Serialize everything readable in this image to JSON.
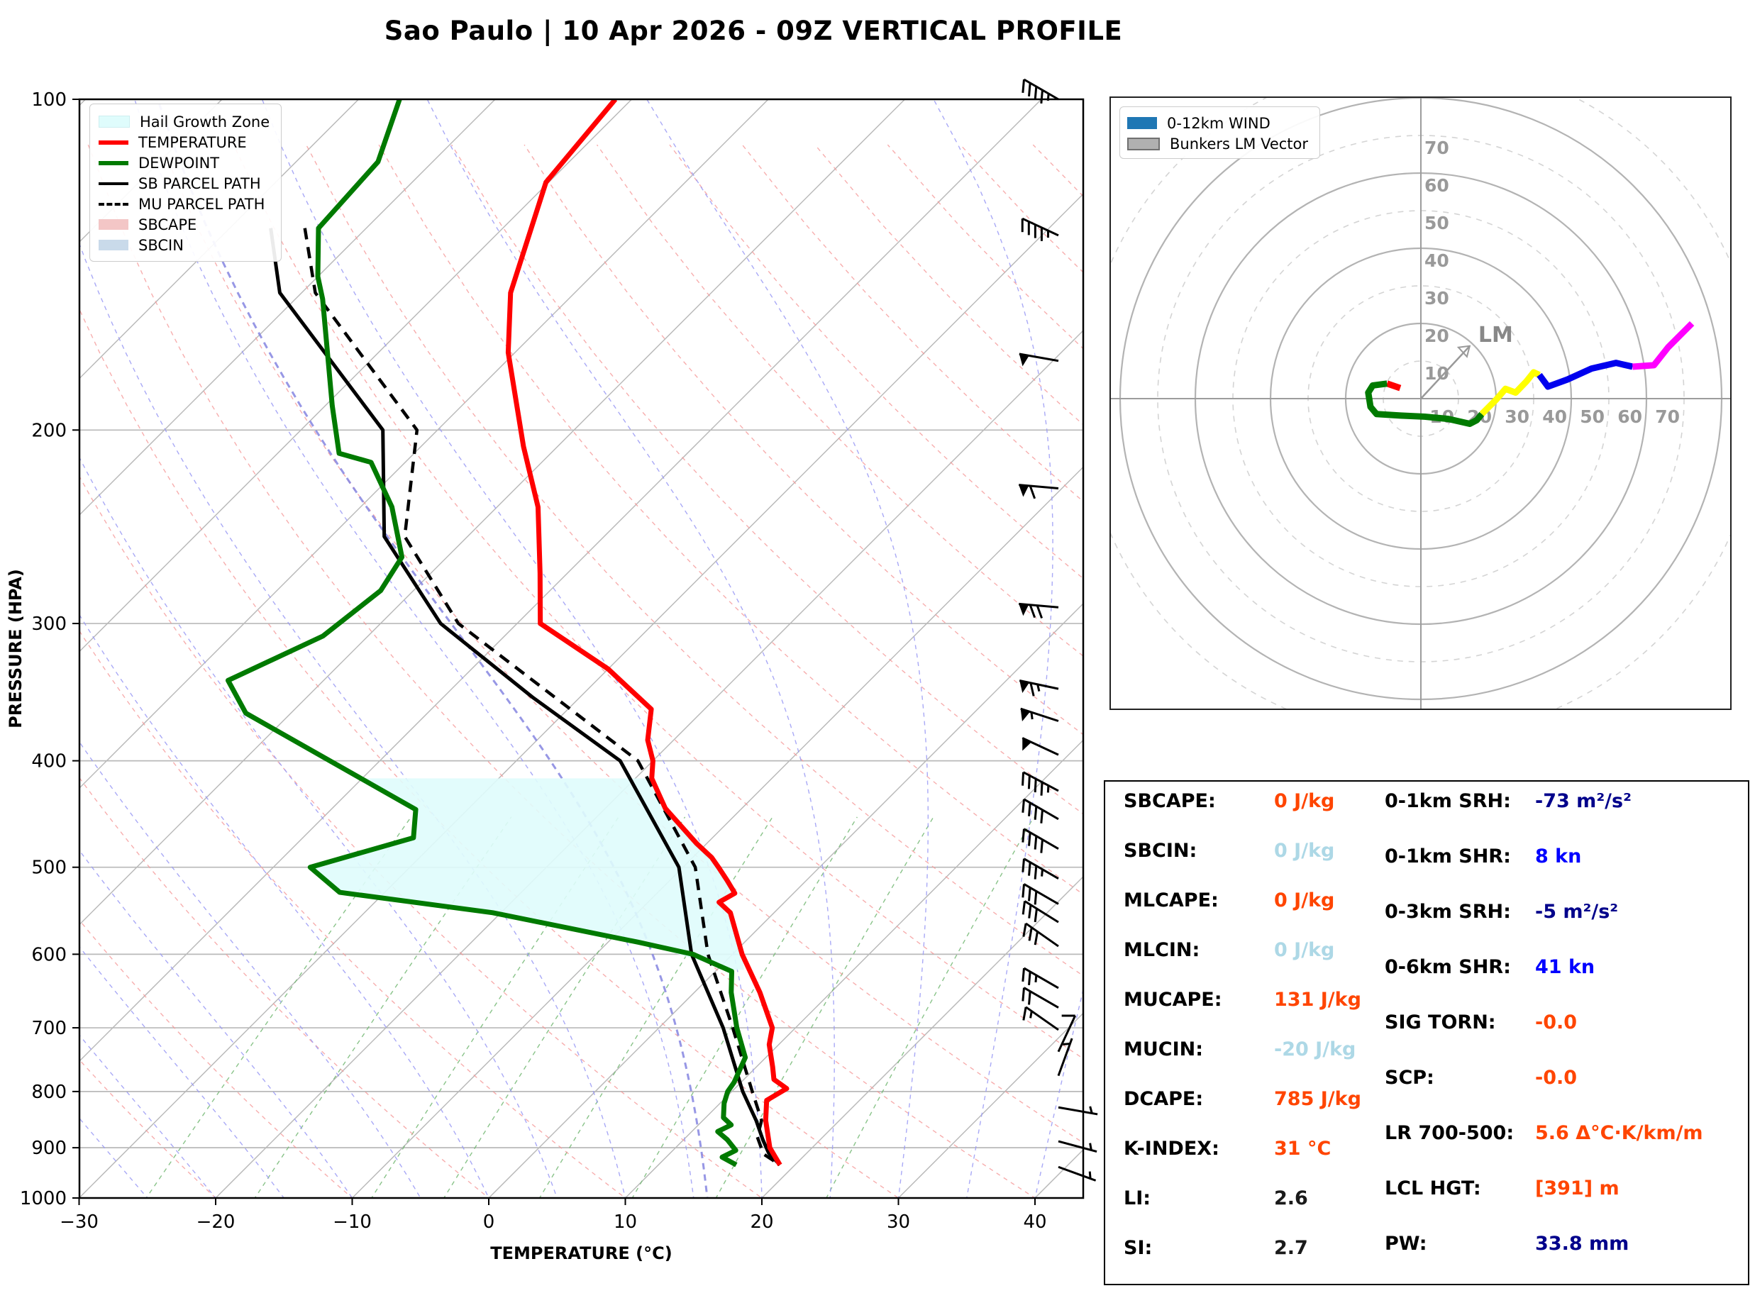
{
  "meta": {
    "title": "Sao Paulo | 10 Apr 2026 - 09Z VERTICAL PROFILE"
  },
  "skewt": {
    "xlabel": "TEMPERATURE (°C)",
    "ylabel": "PRESSURE (HPA)",
    "legend": [
      {
        "swatch": "patch-cyan",
        "label": "Hail Growth Zone"
      },
      {
        "swatch": "line-red",
        "label": "TEMPERATURE"
      },
      {
        "swatch": "line-green",
        "label": "DEWPOINT"
      },
      {
        "swatch": "line-black",
        "label": "SB PARCEL PATH"
      },
      {
        "swatch": "line-dashed",
        "label": "MU PARCEL PATH"
      },
      {
        "swatch": "patch-red",
        "label": "SBCAPE"
      },
      {
        "swatch": "patch-blue",
        "label": "SBCIN"
      }
    ]
  },
  "hodograph": {
    "legend": [
      {
        "swatch": "patch-steelblue",
        "label": "0-12km WIND"
      },
      {
        "swatch": "patch-gray",
        "label": "Bunkers LM Vector"
      }
    ],
    "lm_label": "LM"
  },
  "colors": {
    "temperature": "#FF0000",
    "dewpoint": "#007A00",
    "parcel": "#000000",
    "hail_zone": "#DFFCFC",
    "dry_adiabat": "#F59A9A",
    "moist_adiabat": "#9A9AF5",
    "mixing_ratio": "#74B874",
    "grid": "#B9B9B9",
    "hodo_ring": "#B3B3B3",
    "hodo_label": "#999999",
    "trace": [
      "#FF0000",
      "#007A00",
      "#FFFF00",
      "#0000EE",
      "#FF00FF"
    ]
  },
  "chart_data": {
    "type": "skewt-logp",
    "title": "Sao Paulo | 10 Apr 2026 - 09Z VERTICAL PROFILE",
    "pressure_ticks": [
      100,
      200,
      300,
      400,
      500,
      600,
      700,
      800,
      900,
      1000
    ],
    "temp_ticks": [
      -30,
      -20,
      -10,
      0,
      10,
      20,
      30,
      40
    ],
    "pressure_range": [
      100,
      1000
    ],
    "temp_range": [
      -30,
      40
    ],
    "series": {
      "temperature": [
        [
          100,
          -71.2
        ],
        [
          119,
          -70.2
        ],
        [
          150,
          -64.7
        ],
        [
          170,
          -60.5
        ],
        [
          207,
          -52.5
        ],
        [
          235,
          -47
        ],
        [
          270,
          -42
        ],
        [
          300,
          -38.3
        ],
        [
          330,
          -30
        ],
        [
          359,
          -23.9
        ],
        [
          383,
          -21.9
        ],
        [
          400,
          -20
        ],
        [
          415,
          -18.8
        ],
        [
          442,
          -15.6
        ],
        [
          476,
          -10.7
        ],
        [
          490,
          -8.6
        ],
        [
          500,
          -7.4
        ],
        [
          514,
          -5.8
        ],
        [
          528,
          -4.3
        ],
        [
          538,
          -4.8
        ],
        [
          550,
          -3.2
        ],
        [
          600,
          0.7
        ],
        [
          650,
          4.8
        ],
        [
          700,
          8.3
        ],
        [
          725,
          9.3
        ],
        [
          760,
          11.2
        ],
        [
          780,
          12.2
        ],
        [
          795,
          13.8
        ],
        [
          815,
          13.2
        ],
        [
          850,
          14.6
        ],
        [
          900,
          16.9
        ],
        [
          933,
          18.9
        ]
      ],
      "dewpoint": [
        [
          100,
          -87
        ],
        [
          114,
          -84
        ],
        [
          131,
          -83.5
        ],
        [
          145,
          -80
        ],
        [
          152,
          -78
        ],
        [
          190,
          -69.5
        ],
        [
          210,
          -65.5
        ],
        [
          214,
          -62.5
        ],
        [
          235,
          -57.7
        ],
        [
          261,
          -53.3
        ],
        [
          280,
          -52.4
        ],
        [
          308,
          -53.3
        ],
        [
          338,
          -57
        ],
        [
          362,
          -53.3
        ],
        [
          443,
          -33.8
        ],
        [
          470,
          -31.9
        ],
        [
          500,
          -37.3
        ],
        [
          527,
          -33.3
        ],
        [
          550,
          -20.6
        ],
        [
          585,
          -7.8
        ],
        [
          600,
          -2.9
        ],
        [
          622,
          1.2
        ],
        [
          650,
          2.7
        ],
        [
          700,
          5.7
        ],
        [
          745,
          8.5
        ],
        [
          785,
          9.5
        ],
        [
          800,
          9.7
        ],
        [
          820,
          10.3
        ],
        [
          845,
          11.3
        ],
        [
          858,
          12.4
        ],
        [
          870,
          11.9
        ],
        [
          885,
          13.2
        ],
        [
          905,
          14.6
        ],
        [
          918,
          14.1
        ],
        [
          933,
          15.7
        ]
      ],
      "sb_parcel": [
        [
          131,
          -87
        ],
        [
          150,
          -81.6
        ],
        [
          200,
          -64
        ],
        [
          250,
          -56.1
        ],
        [
          300,
          -45.6
        ],
        [
          350,
          -33.5
        ],
        [
          400,
          -22.4
        ],
        [
          500,
          -10.3
        ],
        [
          600,
          -3.0
        ],
        [
          700,
          4.7
        ],
        [
          800,
          10.8
        ],
        [
          850,
          13.9
        ],
        [
          885,
          15.8
        ],
        [
          910,
          17.2
        ],
        [
          933,
          18.9
        ]
      ],
      "mu_parcel": [
        [
          131,
          -84.5
        ],
        [
          150,
          -79
        ],
        [
          200,
          -61.5
        ],
        [
          250,
          -54.6
        ],
        [
          300,
          -44.3
        ],
        [
          400,
          -21.1
        ],
        [
          500,
          -9.1
        ],
        [
          600,
          -1.8
        ],
        [
          700,
          5.4
        ],
        [
          800,
          11.5
        ],
        [
          850,
          14.3
        ],
        [
          880,
          15.2
        ],
        [
          912,
          16.9
        ],
        [
          933,
          18.9
        ]
      ]
    },
    "hail_growth_zone": [
      [
        415,
        -40.3
      ],
      [
        443,
        -33.8
      ],
      [
        470,
        -31.9
      ],
      [
        500,
        -37.3
      ],
      [
        527,
        -33.3
      ],
      [
        550,
        -20.6
      ],
      [
        585,
        -7.8
      ],
      [
        620,
        1.0
      ],
      [
        620,
        2.0
      ],
      [
        600,
        0.7
      ],
      [
        550,
        -3.2
      ],
      [
        538,
        -4.8
      ],
      [
        528,
        -4.3
      ],
      [
        514,
        -5.8
      ],
      [
        500,
        -7.4
      ],
      [
        490,
        -8.6
      ],
      [
        476,
        -10.7
      ],
      [
        442,
        -15.6
      ],
      [
        415,
        -18.8
      ]
    ],
    "wind_barbs": [
      {
        "p": 100,
        "spd": 45,
        "dir": 300
      },
      {
        "p": 133,
        "spd": 45,
        "dir": 295
      },
      {
        "p": 173,
        "spd": 50,
        "dir": 280
      },
      {
        "p": 226,
        "spd": 60,
        "dir": 275
      },
      {
        "p": 290,
        "spd": 70,
        "dir": 275
      },
      {
        "p": 344,
        "spd": 65,
        "dir": 282
      },
      {
        "p": 368,
        "spd": 55,
        "dir": 288
      },
      {
        "p": 395,
        "spd": 50,
        "dir": 295
      },
      {
        "p": 426,
        "spd": 45,
        "dir": 298
      },
      {
        "p": 452,
        "spd": 40,
        "dir": 300
      },
      {
        "p": 481,
        "spd": 40,
        "dir": 300
      },
      {
        "p": 512,
        "spd": 35,
        "dir": 300
      },
      {
        "p": 540,
        "spd": 30,
        "dir": 300
      },
      {
        "p": 561,
        "spd": 30,
        "dir": 302
      },
      {
        "p": 590,
        "spd": 30,
        "dir": 305
      },
      {
        "p": 644,
        "spd": 25,
        "dir": 300
      },
      {
        "p": 671,
        "spd": 20,
        "dir": 300
      },
      {
        "p": 703,
        "spd": 15,
        "dir": 305
      },
      {
        "p": 736,
        "spd": 10,
        "dir": 25
      },
      {
        "p": 774,
        "spd": 8,
        "dir": 20
      },
      {
        "p": 827,
        "spd": 7,
        "dir": 100
      },
      {
        "p": 888,
        "spd": 8,
        "dir": 105
      },
      {
        "p": 937,
        "spd": 5,
        "dir": 110
      }
    ],
    "hodograph": {
      "ring_step_knots": 10,
      "ring_labels": [
        10,
        20,
        30,
        40,
        50,
        60,
        70
      ],
      "lm_vector_knots": [
        13,
        14
      ],
      "trace_segments": [
        {
          "layer": "0-1km",
          "color_index": 0,
          "points": [
            [
              -5.5,
              2.8
            ],
            [
              -9,
              4
            ]
          ]
        },
        {
          "layer": "1-3km",
          "color_index": 1,
          "points": [
            [
              -9,
              4
            ],
            [
              -12.8,
              3.5
            ],
            [
              -14,
              1.6
            ],
            [
              -13.4,
              -2.2
            ],
            [
              -11.8,
              -4.1
            ],
            [
              -5.4,
              -4.5
            ],
            [
              1,
              -4.8
            ],
            [
              7.3,
              -5.4
            ],
            [
              13,
              -6.7
            ],
            [
              14.9,
              -5.7
            ],
            [
              16.2,
              -4.1
            ]
          ]
        },
        {
          "layer": "3-6km",
          "color_index": 2,
          "points": [
            [
              16.2,
              -4.1
            ],
            [
              20,
              -0.3
            ],
            [
              22.5,
              2.6
            ],
            [
              25.2,
              1.6
            ],
            [
              28,
              4.5
            ],
            [
              30,
              7
            ],
            [
              31.5,
              6.3
            ]
          ]
        },
        {
          "layer": "6-9km",
          "color_index": 3,
          "points": [
            [
              31.5,
              6.3
            ],
            [
              33.8,
              3.2
            ],
            [
              39,
              5.1
            ],
            [
              45.4,
              8
            ],
            [
              51.9,
              9.5
            ],
            [
              56.3,
              8.5
            ]
          ]
        },
        {
          "layer": "9-12km",
          "color_index": 4,
          "points": [
            [
              56.3,
              8.5
            ],
            [
              62,
              8.9
            ],
            [
              65.8,
              13.7
            ],
            [
              72.1,
              20
            ]
          ]
        }
      ]
    },
    "stats": {
      "left": [
        {
          "label": "SBCAPE:",
          "value": "0 J/kg",
          "color": "orange"
        },
        {
          "label": "SBCIN:",
          "value": "0 J/kg",
          "color": "lightblue"
        },
        {
          "label": "MLCAPE:",
          "value": "0 J/kg",
          "color": "orange"
        },
        {
          "label": "MLCIN:",
          "value": "0 J/kg",
          "color": "lightblue"
        },
        {
          "label": "MUCAPE:",
          "value": "131 J/kg",
          "color": "orange"
        },
        {
          "label": "MUCIN:",
          "value": "-20 J/kg",
          "color": "lightblue"
        },
        {
          "label": "DCAPE:",
          "value": "785 J/kg",
          "color": "orange"
        },
        {
          "label": "K-INDEX:",
          "value": "31 °C",
          "color": "orange"
        },
        {
          "label": "LI:",
          "value": "2.6",
          "color": "black"
        },
        {
          "label": "SI:",
          "value": "2.7",
          "color": "black"
        }
      ],
      "right": [
        {
          "label": "0-1km SRH:",
          "value": "-73 m²/s²",
          "color": "navy"
        },
        {
          "label": "0-1km SHR:",
          "value": "8 kn",
          "color": "blue"
        },
        {
          "label": "0-3km SRH:",
          "value": "-5 m²/s²",
          "color": "navy"
        },
        {
          "label": "0-6km SHR:",
          "value": "41 kn",
          "color": "blue"
        },
        {
          "label": "SIG TORN:",
          "value": "-0.0",
          "color": "orange"
        },
        {
          "label": "SCP:",
          "value": "-0.0",
          "color": "orange"
        },
        {
          "label": "LR 700-500:",
          "value": "5.6 Δ°C·K/km/m",
          "color": "orange"
        },
        {
          "label": "LCL HGT:",
          "value": "[391] m",
          "color": "orange"
        },
        {
          "label": "PW:",
          "value": "33.8 mm",
          "color": "navy"
        }
      ]
    }
  }
}
